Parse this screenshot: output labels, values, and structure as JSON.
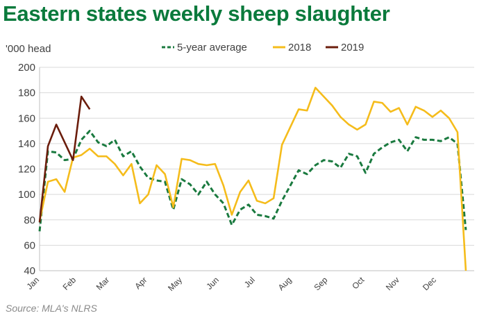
{
  "title": "Eastern states weekly sheep slaughter",
  "source": "Source: MLA's NLRS",
  "chart_data": {
    "type": "line",
    "ylabel": "'000 head",
    "xlabel": "",
    "ylim": [
      40,
      200
    ],
    "yticks": [
      40,
      60,
      80,
      100,
      120,
      140,
      160,
      180,
      200
    ],
    "xlim": [
      0,
      52
    ],
    "month_ticks": [
      {
        "label": "Jan",
        "week": 0
      },
      {
        "label": "Feb",
        "week": 4.4
      },
      {
        "label": "Mar",
        "week": 8.4
      },
      {
        "label": "Apr",
        "week": 12.9
      },
      {
        "label": "May",
        "week": 17.1
      },
      {
        "label": "Jun",
        "week": 21.5
      },
      {
        "label": "Jul",
        "week": 25.8
      },
      {
        "label": "Aug",
        "week": 30.2
      },
      {
        "label": "Sep",
        "week": 34.5
      },
      {
        "label": "Oct",
        "week": 38.9
      },
      {
        "label": "Nov",
        "week": 43.1
      },
      {
        "label": "Dec",
        "week": 47.5
      }
    ],
    "grid": "horizontal",
    "legend_position": "top",
    "series": [
      {
        "name": "5-year average",
        "color": "#1a7a3f",
        "style": "dashed",
        "values": [
          71,
          134,
          133,
          127,
          128,
          143,
          150,
          141,
          138,
          143,
          130,
          134,
          122,
          113,
          111,
          110,
          88,
          112,
          108,
          100,
          110,
          100,
          93,
          76,
          88,
          92,
          84,
          83,
          81,
          95,
          107,
          119,
          116,
          123,
          127,
          126,
          121,
          132,
          130,
          117,
          132,
          137,
          141,
          143,
          134,
          145,
          143,
          143,
          142,
          145,
          140,
          72
        ]
      },
      {
        "name": "2018",
        "color": "#f5bc1b",
        "style": "solid",
        "values": [
          79,
          110,
          112,
          102,
          129,
          131,
          136,
          130,
          130,
          124,
          115,
          124,
          93,
          100,
          123,
          116,
          90,
          128,
          127,
          124,
          123,
          124,
          107,
          84,
          102,
          111,
          95,
          93,
          97,
          139,
          153,
          167,
          166,
          184,
          177,
          170,
          161,
          155,
          151,
          155,
          173,
          172,
          165,
          168,
          155,
          169,
          166,
          161,
          166,
          160,
          149,
          40
        ]
      },
      {
        "name": "2019",
        "color": "#6b1d0c",
        "style": "solid",
        "values": [
          78,
          138,
          155,
          141,
          127,
          177,
          167
        ]
      }
    ]
  }
}
